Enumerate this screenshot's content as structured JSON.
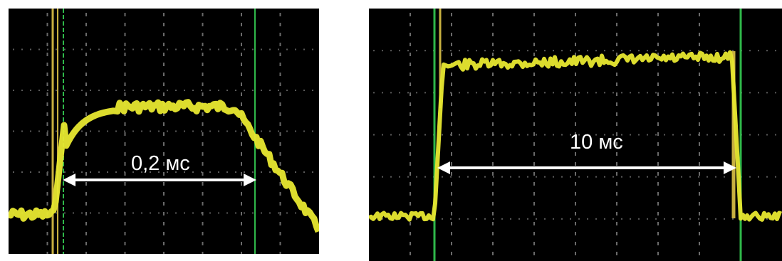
{
  "left_panel": {
    "measurement_label": "0,2 мс",
    "trace_color": "#e8e830",
    "cursor_color": "#2fb84a",
    "arrow_color": "#ffffff"
  },
  "right_panel": {
    "measurement_label": "10 мс",
    "trace_color": "#e8e830",
    "cursor_color": "#2fb84a",
    "arrow_color": "#ffffff"
  }
}
